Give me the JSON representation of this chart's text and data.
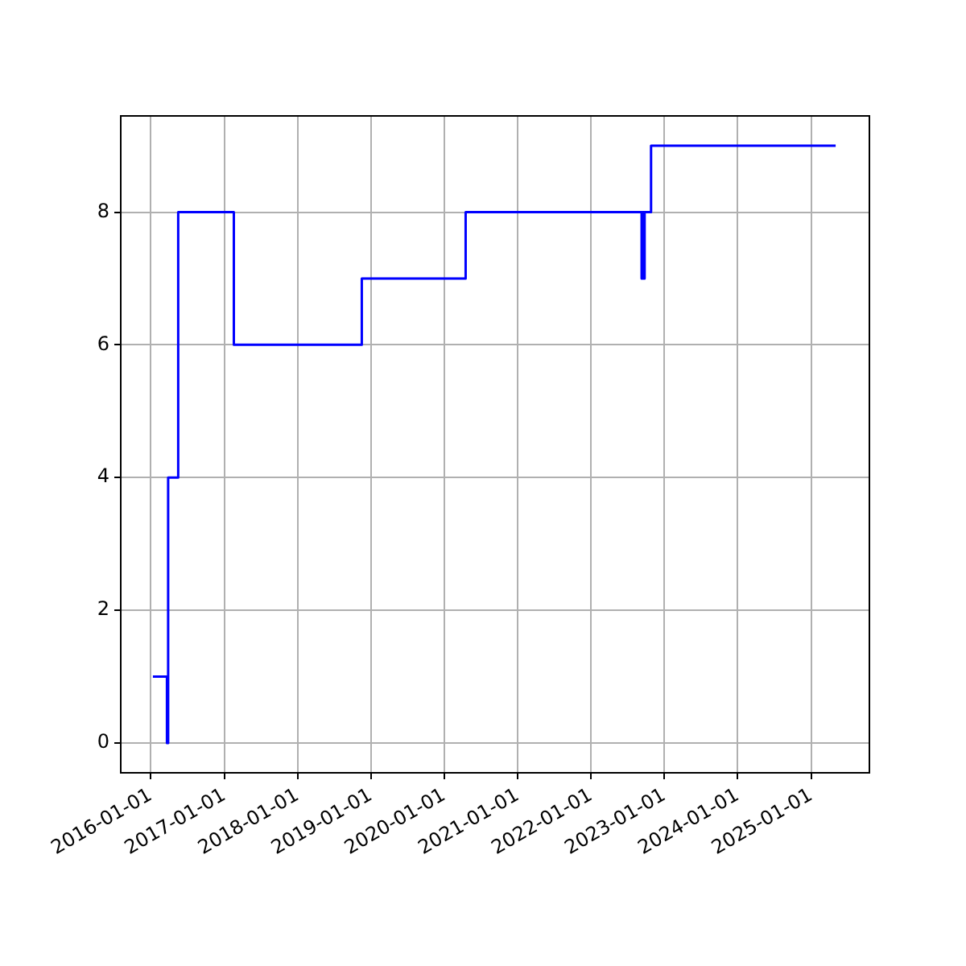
{
  "chart_data": {
    "type": "step",
    "x": [
      "2016-01-12",
      "2016-03-22",
      "2016-03-28",
      "2016-05-17",
      "2017-02-18",
      "2018-11-17",
      "2020-04-17",
      "2022-09-10",
      "2022-09-15",
      "2022-09-20",
      "2022-09-25",
      "2022-10-27",
      "2025-05-03"
    ],
    "series": [
      {
        "color": "#0000ff",
        "values": [
          1,
          0,
          4,
          8,
          6,
          7,
          8,
          7,
          8,
          7,
          8,
          9,
          9
        ]
      }
    ],
    "xlim": [
      "2015-08-05",
      "2025-10-18"
    ],
    "xticks": [
      "2016-01-01",
      "2017-01-01",
      "2018-01-01",
      "2019-01-01",
      "2020-01-01",
      "2021-01-01",
      "2022-01-01",
      "2023-01-01",
      "2024-01-01",
      "2025-01-01"
    ],
    "ylim": [
      -0.45,
      9.45
    ],
    "yticks": [
      0,
      2,
      4,
      6,
      8
    ],
    "grid": true,
    "legend": false
  }
}
